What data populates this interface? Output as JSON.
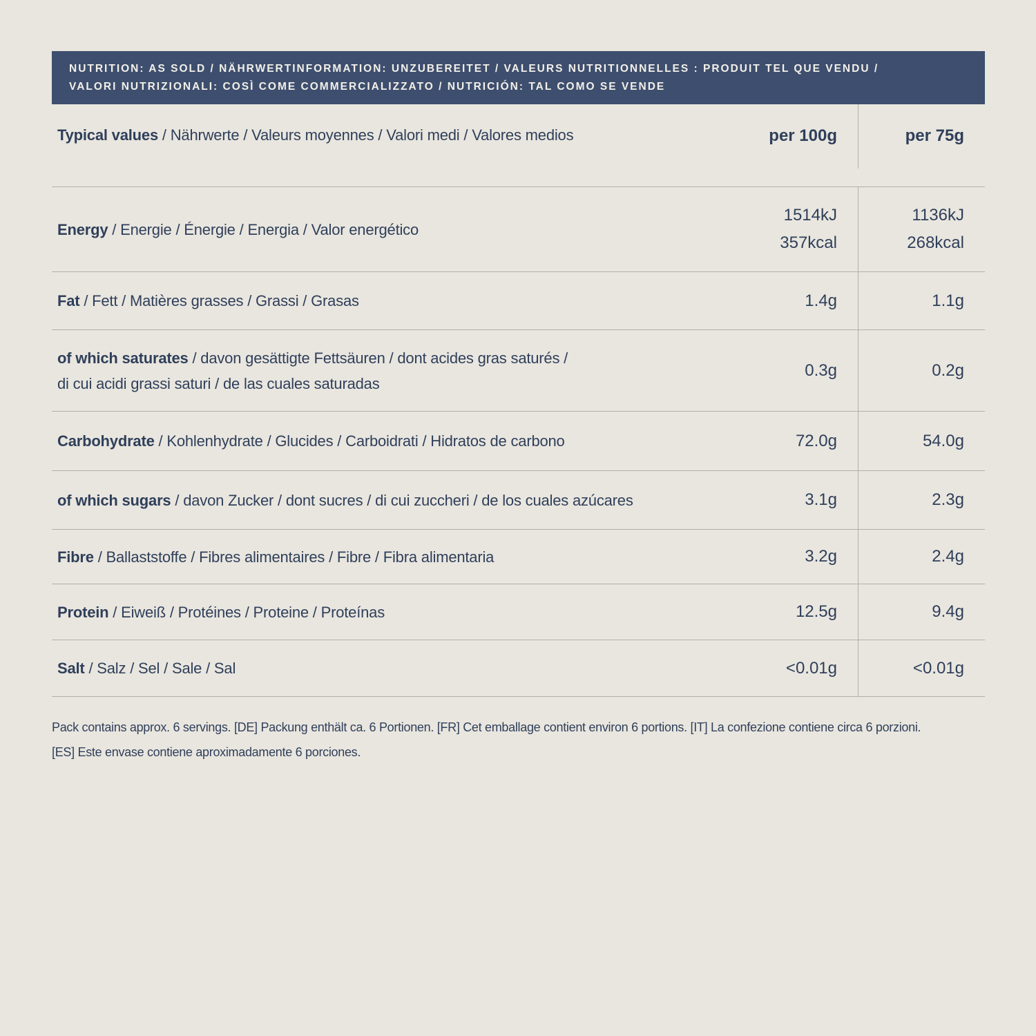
{
  "colors": {
    "page_background": "#e9e6df",
    "header_bar_background": "#3e4e6e",
    "header_bar_text": "#f2f0e9",
    "body_text": "#2f3f5a",
    "divider_line": "#b3afa7"
  },
  "header_bar": {
    "text": "NUTRITION: AS SOLD / NÄHRWERTINFORMATION: UNZUBEREITET / VALEURS NUTRITIONNELLES : PRODUIT TEL QUE VENDU /\nVALORI NUTRIZIONALI: COSÌ COME COMMERCIALIZZATO / NUTRICIÓN: TAL COMO SE VENDE"
  },
  "table": {
    "header": {
      "label_bold": "Typical values",
      "label_rest": " / Nährwerte / Valeurs moyennes / Valori medi / Valores medios",
      "col_per_100g": "per 100g",
      "col_per_75g": "per 75g"
    },
    "rows": [
      {
        "label_bold": "Energy",
        "label_rest": " / Energie / Énergie / Energia / Valor energético",
        "per100": "1514kJ\n357kcal",
        "per75": "1136kJ\n268kcal"
      },
      {
        "label_bold": "Fat",
        "label_rest": " / Fett / Matières grasses / Grassi / Grasas",
        "per100": "1.4g",
        "per75": "1.1g"
      },
      {
        "label_bold": "of which saturates",
        "label_rest": " / davon gesättigte Fettsäuren / dont acides gras saturés /\ndi cui acidi grassi saturi / de las cuales saturadas",
        "per100": "0.3g",
        "per75": "0.2g"
      },
      {
        "label_bold": "Carbohydrate",
        "label_rest": " / Kohlenhydrate / Glucides / Carboidrati / Hidratos de carbono",
        "per100": "72.0g",
        "per75": "54.0g"
      },
      {
        "label_bold": "of which sugars",
        "label_rest": " / davon Zucker / dont sucres / di cui zuccheri / de los cuales azúcares",
        "per100": "3.1g",
        "per75": "2.3g"
      },
      {
        "label_bold": "Fibre",
        "label_rest": " / Ballaststoffe / Fibres alimentaires / Fibre / Fibra alimentaria",
        "per100": "3.2g",
        "per75": "2.4g"
      },
      {
        "label_bold": "Protein",
        "label_rest": " / Eiweiß / Protéines / Proteine / Proteínas",
        "per100": "12.5g",
        "per75": "9.4g"
      },
      {
        "label_bold": "Salt",
        "label_rest": " / Salz / Sel / Sale / Sal",
        "per100": "<0.01g",
        "per75": "<0.01g"
      }
    ]
  },
  "footer": {
    "text": "Pack contains approx. 6 servings. [DE] Packung enthält ca. 6 Portionen. [FR] Cet emballage contient environ 6 portions. [IT] La confezione contiene circa 6 porzioni.\n[ES] Este envase contiene aproximadamente 6 porciones."
  }
}
